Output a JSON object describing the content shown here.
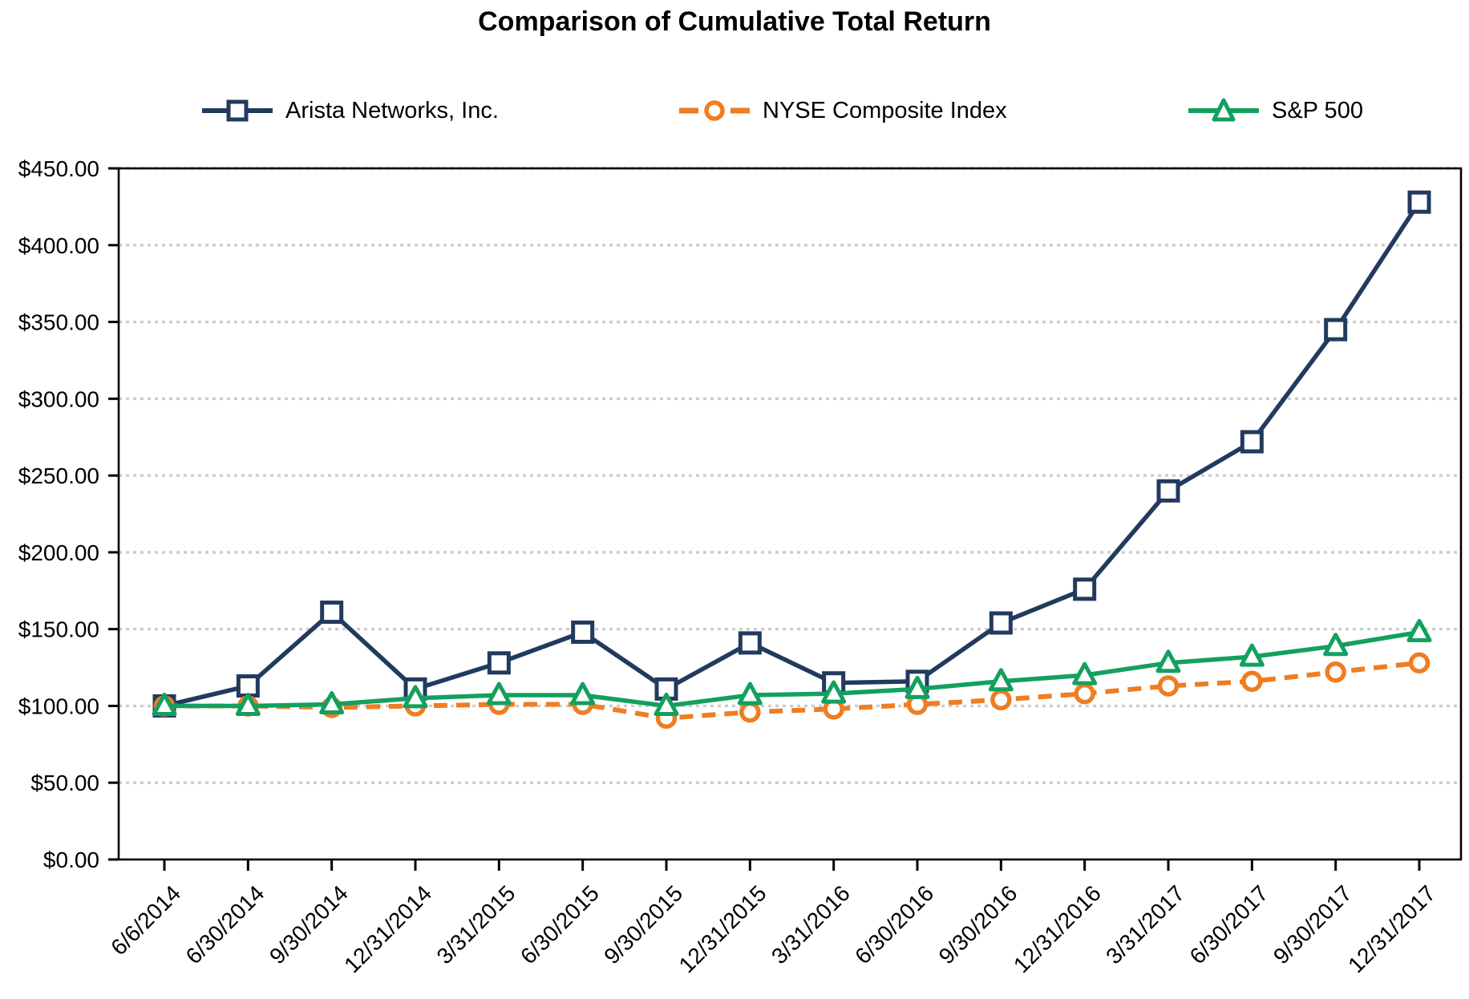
{
  "page": {
    "title": "Comparison of Cumulative Total Return"
  },
  "chart_data": {
    "type": "line",
    "title": "Comparison of Cumulative Total Return",
    "xlabel": "",
    "ylabel": "",
    "legend_position": "top",
    "grid": "horizontal dotted gray lines at each $50.00 step",
    "x_categories": [
      "6/6/2014",
      "6/30/2014",
      "9/30/2014",
      "12/31/2014",
      "3/31/2015",
      "6/30/2015",
      "9/30/2015",
      "12/31/2015",
      "3/31/2016",
      "6/30/2016",
      "9/30/2016",
      "12/31/2016",
      "3/31/2017",
      "6/30/2017",
      "9/30/2017",
      "12/31/2017"
    ],
    "y_axis": {
      "min": 0,
      "max": 450,
      "step": 50,
      "tick_labels": [
        "$0.00",
        "$50.00",
        "$100.00",
        "$150.00",
        "$200.00",
        "$250.00",
        "$300.00",
        "$350.00",
        "$400.00",
        "$450.00"
      ]
    },
    "series": [
      {
        "name": "Arista Networks, Inc.",
        "color": "#223A5E",
        "marker": "square",
        "line_style": "solid",
        "values": [
          100,
          113,
          161,
          111,
          128,
          148,
          111,
          141,
          115,
          116,
          154,
          176,
          240,
          272,
          345,
          428
        ]
      },
      {
        "name": "NYSE Composite Index",
        "color": "#EF7D22",
        "marker": "circle",
        "line_style": "dashed",
        "values": [
          100,
          100,
          99,
          100,
          101,
          101,
          92,
          96,
          98,
          101,
          104,
          108,
          113,
          116,
          122,
          128
        ]
      },
      {
        "name": "S&P 500",
        "color": "#13A05F",
        "marker": "triangle",
        "line_style": "solid",
        "values": [
          100,
          100,
          101,
          105,
          107,
          107,
          100,
          107,
          108,
          111,
          116,
          120,
          128,
          132,
          139,
          148
        ]
      }
    ],
    "colors": {
      "axis": "#000000",
      "gridline": "#CCCCCC",
      "background": "#FFFFFF",
      "text": "#000000"
    }
  }
}
